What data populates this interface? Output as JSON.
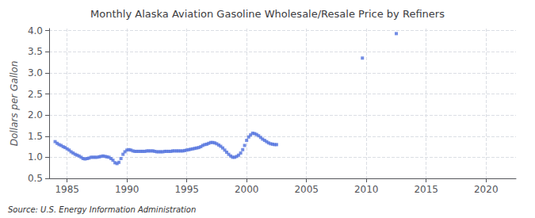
{
  "chart_data": {
    "type": "scatter",
    "title": "Monthly Alaska Aviation Gasoline Wholesale/Resale Price by Refiners",
    "ylabel": "Dollars per Gallon",
    "annotation": "Source: U.S. Energy Information Administration",
    "marker": "square",
    "grid": true,
    "xlim": [
      1983.5,
      2022.5
    ],
    "xticks": [
      1985,
      1990,
      1995,
      2000,
      2005,
      2010,
      2015,
      2020
    ],
    "ylim": [
      0.5,
      4.05
    ],
    "yticks": [
      0.5,
      {
        "value": 1.0,
        "label": "1.0"
      },
      1.5,
      {
        "value": 2.0,
        "label": "2.0"
      },
      2.5,
      {
        "value": 3.0,
        "label": "3.0"
      },
      3.5,
      {
        "value": 4.0,
        "label": "4.0"
      }
    ],
    "x": [
      1984.0,
      1984.17,
      1984.33,
      1984.5,
      1984.67,
      1984.83,
      1985.0,
      1985.17,
      1985.33,
      1985.5,
      1985.67,
      1985.83,
      1986.0,
      1986.17,
      1986.33,
      1986.5,
      1986.67,
      1986.83,
      1987.0,
      1987.17,
      1987.33,
      1987.5,
      1987.67,
      1987.83,
      1988.0,
      1988.17,
      1988.33,
      1988.5,
      1988.67,
      1988.83,
      1989.0,
      1989.17,
      1989.33,
      1989.5,
      1989.67,
      1989.83,
      1990.0,
      1990.17,
      1990.33,
      1990.5,
      1990.67,
      1990.83,
      1991.0,
      1991.17,
      1991.33,
      1991.5,
      1991.67,
      1991.83,
      1992.0,
      1992.17,
      1992.33,
      1992.5,
      1992.67,
      1992.83,
      1993.0,
      1993.17,
      1993.33,
      1993.5,
      1993.67,
      1993.83,
      1994.0,
      1994.17,
      1994.33,
      1994.5,
      1994.67,
      1994.83,
      1995.0,
      1995.17,
      1995.33,
      1995.5,
      1995.67,
      1995.83,
      1996.0,
      1996.17,
      1996.33,
      1996.5,
      1996.67,
      1996.83,
      1997.0,
      1997.17,
      1997.33,
      1997.5,
      1997.67,
      1997.83,
      1998.0,
      1998.17,
      1998.33,
      1998.5,
      1998.67,
      1998.83,
      1999.0,
      1999.17,
      1999.33,
      1999.5,
      1999.67,
      1999.83,
      2000.0,
      2000.17,
      2000.33,
      2000.5,
      2000.67,
      2000.83,
      2001.0,
      2001.17,
      2001.33,
      2001.5,
      2001.67,
      2001.83,
      2002.0,
      2002.17,
      2002.33,
      2002.5,
      2009.67,
      2012.5
    ],
    "values": [
      1.37,
      1.33,
      1.3,
      1.28,
      1.25,
      1.23,
      1.2,
      1.17,
      1.13,
      1.1,
      1.07,
      1.05,
      1.03,
      1.0,
      0.97,
      0.96,
      0.97,
      0.98,
      1.0,
      1.0,
      1.0,
      1.0,
      1.01,
      1.02,
      1.03,
      1.02,
      1.01,
      1.0,
      0.97,
      0.93,
      0.87,
      0.85,
      0.88,
      0.97,
      1.07,
      1.13,
      1.17,
      1.18,
      1.17,
      1.15,
      1.14,
      1.14,
      1.14,
      1.14,
      1.14,
      1.14,
      1.15,
      1.15,
      1.15,
      1.15,
      1.14,
      1.13,
      1.13,
      1.13,
      1.13,
      1.14,
      1.14,
      1.14,
      1.14,
      1.15,
      1.15,
      1.15,
      1.15,
      1.15,
      1.15,
      1.16,
      1.17,
      1.18,
      1.19,
      1.2,
      1.21,
      1.22,
      1.23,
      1.25,
      1.28,
      1.3,
      1.31,
      1.33,
      1.35,
      1.35,
      1.34,
      1.32,
      1.29,
      1.26,
      1.22,
      1.17,
      1.12,
      1.07,
      1.03,
      1.0,
      1.0,
      1.02,
      1.05,
      1.1,
      1.18,
      1.28,
      1.4,
      1.48,
      1.53,
      1.57,
      1.56,
      1.54,
      1.51,
      1.47,
      1.43,
      1.4,
      1.37,
      1.34,
      1.32,
      1.31,
      1.3,
      1.3,
      3.35,
      3.93
    ]
  }
}
